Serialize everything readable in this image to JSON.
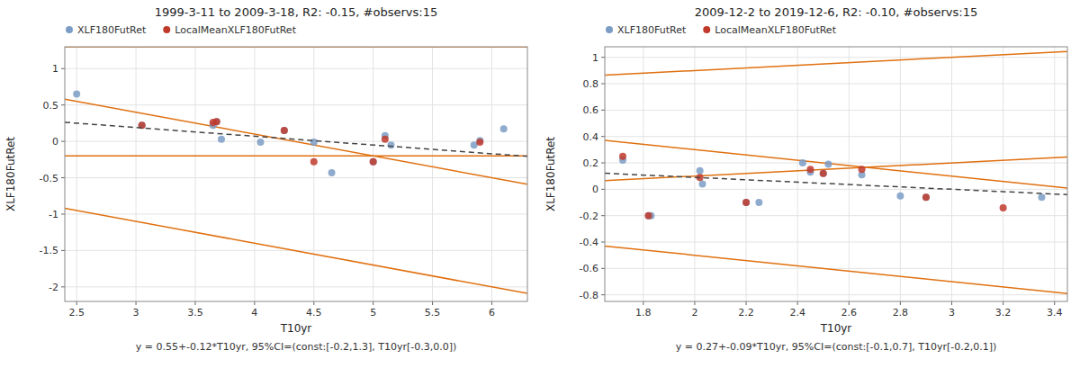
{
  "chart_data": [
    {
      "type": "scatter",
      "title": "1999-3-11 to 2009-3-18, R2: -0.15, #observs:15",
      "x_label": "T10yr",
      "y_label": "XLF180FutRet",
      "annotations": [
        "y = 0.55+-0.12*T10yr, 95%CI=(const:[-0.2,1.3], T10yr[-0.3,0.0])"
      ],
      "xlim": [
        2.4,
        6.3
      ],
      "ylim": [
        -2.2,
        1.3
      ],
      "xticks": [
        2.5,
        3.0,
        3.5,
        4.0,
        4.5,
        5.0,
        5.5,
        6.0
      ],
      "yticks": [
        -2,
        -1.5,
        -1,
        -0.5,
        0,
        0.5,
        1
      ],
      "grid": true,
      "legend": "upper left",
      "series": [
        {
          "type": "line",
          "color": "#e07010",
          "x": [
            2.4,
            6.3
          ],
          "values": [
            -0.92,
            -2.09
          ]
        },
        {
          "type": "line",
          "color": "#e07010",
          "x": [
            2.4,
            6.3
          ],
          "values": [
            -0.2,
            -0.2
          ]
        },
        {
          "type": "line",
          "color": "#e07010",
          "x": [
            2.4,
            6.3
          ],
          "values": [
            0.58,
            -0.59
          ]
        },
        {
          "type": "line",
          "color": "#e07010",
          "x": [
            2.4,
            6.3
          ],
          "values": [
            1.3,
            1.3
          ]
        },
        {
          "name": "XLF180FutRet",
          "type": "scatter",
          "color": "#7b9cc4",
          "x": [
            2.5,
            3.05,
            3.65,
            3.68,
            3.72,
            4.05,
            4.25,
            4.5,
            4.65,
            5.0,
            5.1,
            5.15,
            5.85,
            5.9,
            6.1
          ],
          "values": [
            0.65,
            0.22,
            0.22,
            0.27,
            0.03,
            -0.01,
            0.15,
            -0.01,
            -0.43,
            -0.28,
            0.08,
            -0.05,
            -0.05,
            0.01,
            0.17
          ]
        },
        {
          "name": "LocalMeanXLF180FutRet",
          "type": "scatter",
          "color": "#c0392b",
          "x": [
            3.05,
            3.65,
            3.68,
            4.25,
            4.5,
            5.0,
            5.1,
            5.9
          ],
          "values": [
            0.22,
            0.26,
            0.27,
            0.15,
            -0.28,
            -0.28,
            0.03,
            -0.01
          ]
        },
        {
          "type": "line",
          "color": "#444444",
          "line_style": "dashed",
          "x": [
            2.4,
            6.3
          ],
          "values": [
            0.262,
            -0.206
          ]
        }
      ]
    },
    {
      "type": "scatter",
      "title": "2009-12-2 to 2019-12-6, R2: -0.10, #observs:15",
      "x_label": "T10yr",
      "y_label": "XLF180FutRet",
      "annotations": [
        "y = 0.27+-0.09*T10yr, 95%CI=(const:[-0.1,0.7], T10yr[-0.2,0.1])"
      ],
      "xlim": [
        1.65,
        3.45
      ],
      "ylim": [
        -0.85,
        1.08
      ],
      "xticks": [
        1.8,
        2.0,
        2.2,
        2.4,
        2.6,
        2.8,
        3.0,
        3.2,
        3.4
      ],
      "yticks": [
        -0.8,
        -0.6,
        -0.4,
        -0.2,
        0,
        0.2,
        0.4,
        0.6,
        0.8,
        1
      ],
      "grid": true,
      "legend": "upper left",
      "series": [
        {
          "type": "line",
          "color": "#e07010",
          "x": [
            1.65,
            3.45
          ],
          "values": [
            -0.43,
            -0.79
          ]
        },
        {
          "type": "line",
          "color": "#e07010",
          "x": [
            1.65,
            3.45
          ],
          "values": [
            0.065,
            0.245
          ]
        },
        {
          "type": "line",
          "color": "#e07010",
          "x": [
            1.65,
            3.45
          ],
          "values": [
            0.37,
            0.01
          ]
        },
        {
          "type": "line",
          "color": "#e07010",
          "x": [
            1.65,
            3.45
          ],
          "values": [
            0.865,
            1.045
          ]
        },
        {
          "name": "XLF180FutRet",
          "type": "scatter",
          "color": "#7b9cc4",
          "x": [
            1.72,
            1.82,
            1.83,
            2.02,
            2.03,
            2.2,
            2.25,
            2.42,
            2.45,
            2.5,
            2.52,
            2.65,
            2.8,
            2.9,
            3.35
          ],
          "values": [
            0.22,
            -0.2,
            -0.2,
            0.14,
            0.04,
            -0.1,
            -0.1,
            0.2,
            0.13,
            0.12,
            0.19,
            0.11,
            -0.05,
            -0.06,
            -0.06
          ]
        },
        {
          "name": "LocalMeanXLF180FutRet",
          "type": "scatter",
          "color": "#c0392b",
          "x": [
            1.72,
            1.82,
            2.02,
            2.2,
            2.45,
            2.5,
            2.65,
            2.9,
            3.2
          ],
          "values": [
            0.25,
            -0.2,
            0.09,
            -0.1,
            0.15,
            0.12,
            0.15,
            -0.06,
            -0.14
          ]
        },
        {
          "type": "line",
          "color": "#444444",
          "line_style": "dashed",
          "x": [
            1.65,
            3.45
          ],
          "values": [
            0.1215,
            -0.0405
          ]
        }
      ]
    }
  ]
}
